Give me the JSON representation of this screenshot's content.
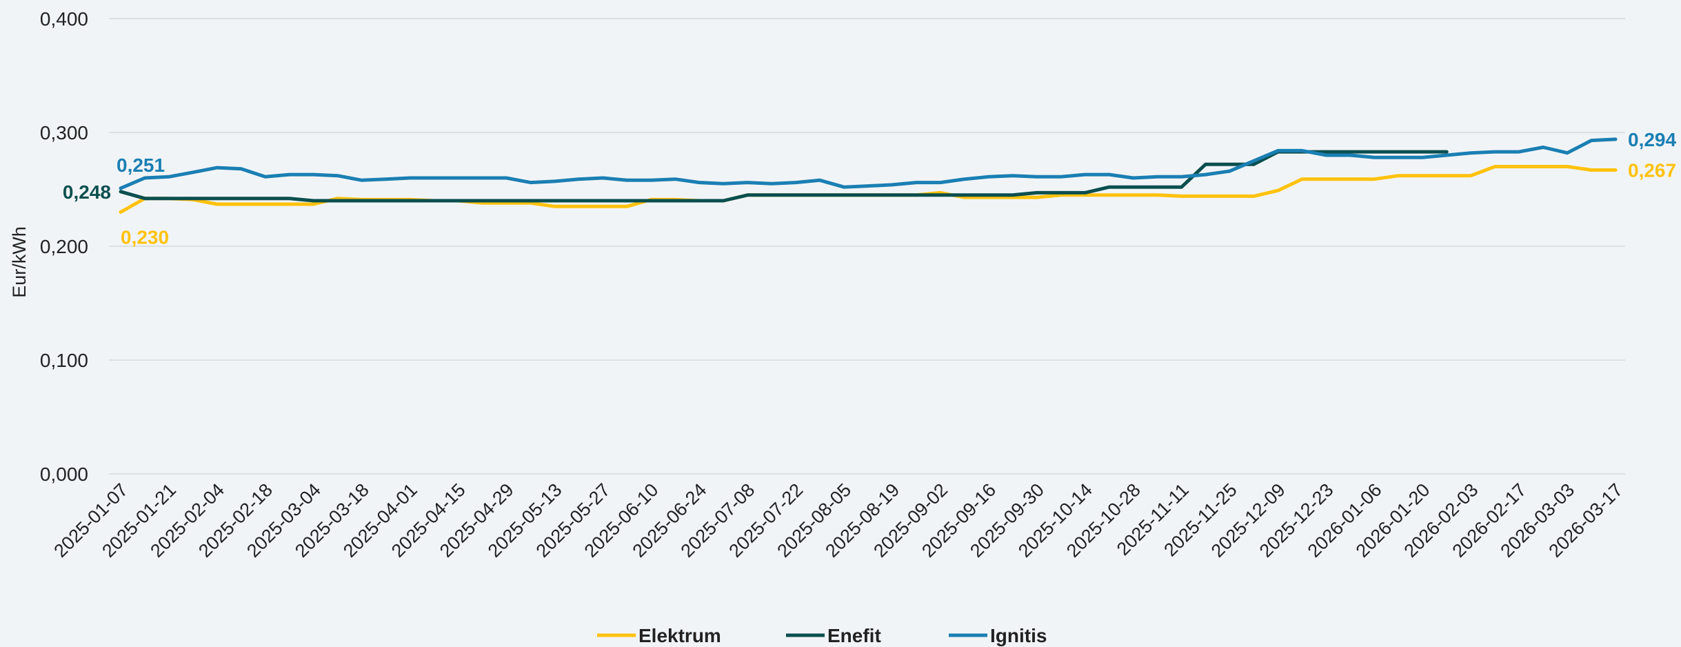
{
  "chart_data": {
    "type": "line",
    "title": "",
    "xlabel": "",
    "ylabel": "Eur/kWh",
    "ylim": [
      0,
      0.4
    ],
    "y_ticks": [
      "0,000",
      "0,100",
      "0,200",
      "0,300",
      "0,400"
    ],
    "y_tick_values": [
      0,
      0.1,
      0.2,
      0.3,
      0.4
    ],
    "x_ticks": [
      "2025-01-07",
      "2025-01-21",
      "2025-02-04",
      "2025-02-18",
      "2025-03-04",
      "2025-03-18",
      "2025-04-01",
      "2025-04-15",
      "2025-04-29",
      "2025-05-13",
      "2025-05-27",
      "2025-06-10",
      "2025-06-24",
      "2025-07-08",
      "2025-07-22",
      "2025-08-05",
      "2025-08-19",
      "2025-09-02",
      "2025-09-16",
      "2025-09-30",
      "2025-10-14",
      "2025-10-28",
      "2025-11-11",
      "2025-11-25",
      "2025-12-09",
      "2025-12-23",
      "2026-01-06",
      "2026-01-20",
      "2026-02-03",
      "2026-02-17",
      "2026-03-03",
      "2026-03-17"
    ],
    "grid": true,
    "legend": "bottom",
    "series": [
      {
        "name": "Elektrum",
        "color": "#ffc20e",
        "start_label": "0,230",
        "end_label": "0,267",
        "x": [
          "2025-01-07",
          "2025-01-14",
          "2025-01-21",
          "2025-01-28",
          "2025-02-04",
          "2025-02-11",
          "2025-02-18",
          "2025-02-25",
          "2025-03-04",
          "2025-03-11",
          "2025-03-18",
          "2025-03-25",
          "2025-04-01",
          "2025-04-08",
          "2025-04-15",
          "2025-04-22",
          "2025-04-29",
          "2025-05-06",
          "2025-05-13",
          "2025-05-20",
          "2025-05-27",
          "2025-06-03",
          "2025-06-10",
          "2025-06-17",
          "2025-06-24",
          "2025-07-01",
          "2025-07-08",
          "2025-07-15",
          "2025-07-22",
          "2025-07-29",
          "2025-08-05",
          "2025-08-12",
          "2025-08-19",
          "2025-08-26",
          "2025-09-02",
          "2025-09-09",
          "2025-09-16",
          "2025-09-23",
          "2025-09-30",
          "2025-10-07",
          "2025-10-14",
          "2025-10-21",
          "2025-10-28",
          "2025-11-04",
          "2025-11-11",
          "2025-11-18",
          "2025-11-25",
          "2025-12-02",
          "2025-12-09",
          "2025-12-16",
          "2025-12-23",
          "2025-12-30",
          "2026-01-06",
          "2026-01-13",
          "2026-01-20",
          "2026-01-27",
          "2026-02-03",
          "2026-02-10",
          "2026-02-17",
          "2026-02-24",
          "2026-03-03",
          "2026-03-10",
          "2026-03-17"
        ],
        "y": [
          0.23,
          0.242,
          0.242,
          0.241,
          0.237,
          0.237,
          0.237,
          0.237,
          0.237,
          0.242,
          0.241,
          0.241,
          0.241,
          0.24,
          0.24,
          0.238,
          0.238,
          0.238,
          0.235,
          0.235,
          0.235,
          0.235,
          0.241,
          0.241,
          0.24,
          0.24,
          0.245,
          0.245,
          0.245,
          0.245,
          0.245,
          0.245,
          0.245,
          0.245,
          0.247,
          0.243,
          0.243,
          0.243,
          0.243,
          0.245,
          0.245,
          0.245,
          0.245,
          0.245,
          0.244,
          0.244,
          0.244,
          0.244,
          0.249,
          0.259,
          0.259,
          0.259,
          0.259,
          0.262,
          0.262,
          0.262,
          0.262,
          0.27,
          0.27,
          0.27,
          0.27,
          0.267,
          0.267
        ]
      },
      {
        "name": "Enefit",
        "color": "#0b4f4f",
        "start_label": "0,248",
        "end_label": "",
        "x": [
          "2025-01-07",
          "2025-01-14",
          "2025-01-21",
          "2025-01-28",
          "2025-02-04",
          "2025-02-11",
          "2025-02-18",
          "2025-02-25",
          "2025-03-04",
          "2025-03-11",
          "2025-03-18",
          "2025-03-25",
          "2025-04-01",
          "2025-04-08",
          "2025-04-15",
          "2025-04-22",
          "2025-04-29",
          "2025-05-06",
          "2025-05-13",
          "2025-05-20",
          "2025-05-27",
          "2025-06-03",
          "2025-06-10",
          "2025-06-17",
          "2025-06-24",
          "2025-07-01",
          "2025-07-08",
          "2025-07-15",
          "2025-07-22",
          "2025-07-29",
          "2025-08-05",
          "2025-08-12",
          "2025-08-19",
          "2025-08-26",
          "2025-09-02",
          "2025-09-09",
          "2025-09-16",
          "2025-09-23",
          "2025-09-30",
          "2025-10-07",
          "2025-10-14",
          "2025-10-21",
          "2025-10-28",
          "2025-11-04",
          "2025-11-11",
          "2025-11-18",
          "2025-11-25",
          "2025-12-02",
          "2025-12-09",
          "2025-12-16",
          "2025-12-23",
          "2025-12-30",
          "2026-01-06",
          "2026-01-13",
          "2026-01-20",
          "2026-01-27"
        ],
        "y": [
          0.248,
          0.242,
          0.242,
          0.242,
          0.242,
          0.242,
          0.242,
          0.242,
          0.24,
          0.24,
          0.24,
          0.24,
          0.24,
          0.24,
          0.24,
          0.24,
          0.24,
          0.24,
          0.24,
          0.24,
          0.24,
          0.24,
          0.24,
          0.24,
          0.24,
          0.24,
          0.245,
          0.245,
          0.245,
          0.245,
          0.245,
          0.245,
          0.245,
          0.245,
          0.245,
          0.245,
          0.245,
          0.245,
          0.247,
          0.247,
          0.247,
          0.252,
          0.252,
          0.252,
          0.252,
          0.272,
          0.272,
          0.272,
          0.283,
          0.283,
          0.283,
          0.283,
          0.283,
          0.283,
          0.283,
          0.283
        ]
      },
      {
        "name": "Ignitis",
        "color": "#1a7fb3",
        "start_label": "0,251",
        "end_label": "0,294",
        "x": [
          "2025-01-07",
          "2025-01-14",
          "2025-01-21",
          "2025-01-28",
          "2025-02-04",
          "2025-02-11",
          "2025-02-18",
          "2025-02-25",
          "2025-03-04",
          "2025-03-11",
          "2025-03-18",
          "2025-03-25",
          "2025-04-01",
          "2025-04-08",
          "2025-04-15",
          "2025-04-22",
          "2025-04-29",
          "2025-05-06",
          "2025-05-13",
          "2025-05-20",
          "2025-05-27",
          "2025-06-03",
          "2025-06-10",
          "2025-06-17",
          "2025-06-24",
          "2025-07-01",
          "2025-07-08",
          "2025-07-15",
          "2025-07-22",
          "2025-07-29",
          "2025-08-05",
          "2025-08-12",
          "2025-08-19",
          "2025-08-26",
          "2025-09-02",
          "2025-09-09",
          "2025-09-16",
          "2025-09-23",
          "2025-09-30",
          "2025-10-07",
          "2025-10-14",
          "2025-10-21",
          "2025-10-28",
          "2025-11-04",
          "2025-11-11",
          "2025-11-18",
          "2025-11-25",
          "2025-12-02",
          "2025-12-09",
          "2025-12-16",
          "2025-12-23",
          "2025-12-30",
          "2026-01-06",
          "2026-01-13",
          "2026-01-20",
          "2026-01-27",
          "2026-02-03",
          "2026-02-10",
          "2026-02-17",
          "2026-02-24",
          "2026-03-03",
          "2026-03-10",
          "2026-03-17"
        ],
        "y": [
          0.251,
          0.26,
          0.261,
          0.265,
          0.269,
          0.268,
          0.261,
          0.263,
          0.263,
          0.262,
          0.258,
          0.259,
          0.26,
          0.26,
          0.26,
          0.26,
          0.26,
          0.256,
          0.257,
          0.259,
          0.26,
          0.258,
          0.258,
          0.259,
          0.256,
          0.255,
          0.256,
          0.255,
          0.256,
          0.258,
          0.252,
          0.253,
          0.254,
          0.256,
          0.256,
          0.259,
          0.261,
          0.262,
          0.261,
          0.261,
          0.263,
          0.263,
          0.26,
          0.261,
          0.261,
          0.263,
          0.266,
          0.275,
          0.284,
          0.284,
          0.28,
          0.28,
          0.278,
          0.278,
          0.278,
          0.28,
          0.282,
          0.283,
          0.283,
          0.287,
          0.282,
          0.293,
          0.294
        ]
      }
    ]
  }
}
